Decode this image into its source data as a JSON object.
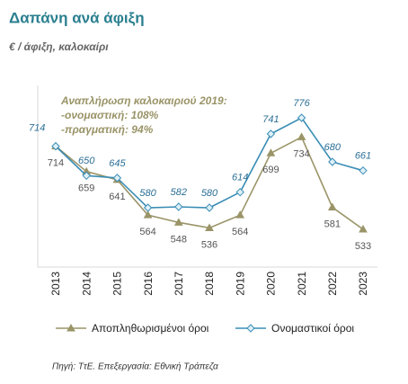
{
  "chart_data": {
    "type": "line",
    "title": "Δαπάνη ανά άφιξη",
    "subtitle": "€ / άφιξη, καλοκαίρι",
    "annotation": [
      "Αναπλήρωση καλοκαιριού 2019:",
      "-ονομαστική: 108%",
      "-πραγματική: 94%"
    ],
    "source": "Πηγή: ΤτΕ. Επεξεργασία: Εθνική Τράπεζα",
    "categories": [
      "2013",
      "2014",
      "2015",
      "2016",
      "2017",
      "2018",
      "2019",
      "2020",
      "2021",
      "2022",
      "2023"
    ],
    "series": [
      {
        "name": "Αποπληθωρισμένοι όροι",
        "color": "#9a9468",
        "label_color": "#555555",
        "marker": "triangle",
        "values": [
          714,
          659,
          641,
          564,
          548,
          536,
          564,
          699,
          734,
          581,
          533
        ]
      },
      {
        "name": "Ονομαστικοί όροι",
        "color": "#3a8db5",
        "label_color": "#2b6f96",
        "marker": "diamond",
        "values": [
          714,
          650,
          645,
          580,
          582,
          580,
          614,
          741,
          776,
          680,
          661
        ]
      }
    ]
  }
}
